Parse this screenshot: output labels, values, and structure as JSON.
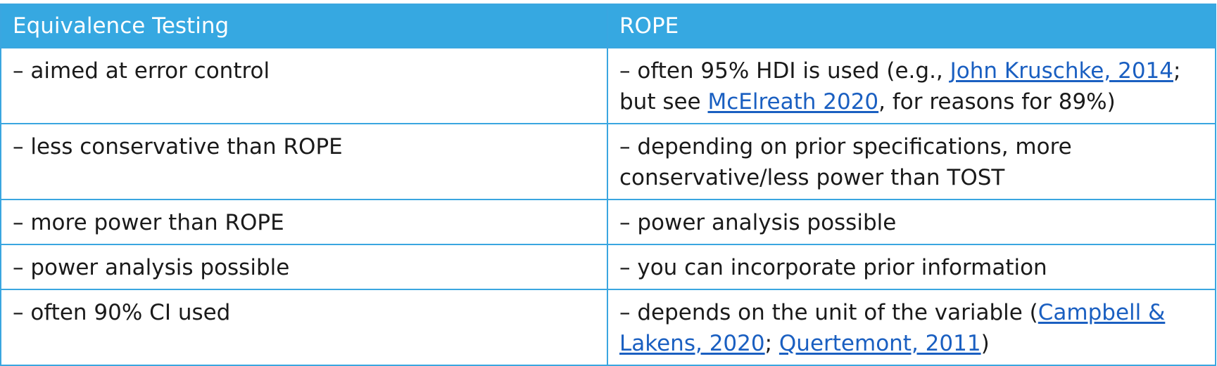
{
  "table": {
    "headers": [
      "Equivalence Testing",
      "ROPE"
    ],
    "rows": [
      {
        "left": "– aimed at error control",
        "right": {
          "t1": "– often 95% HDI is used (e.g., ",
          "link1": "John Kruschke, 2014",
          "t2": "; but see ",
          "link2": "McElreath 2020",
          "t3": ", for reasons for 89%)"
        }
      },
      {
        "left": "– less conservative than ROPE",
        "right": "– depending on prior specifications, more conservative/less power than TOST"
      },
      {
        "left": "– more power than ROPE",
        "right": "– power analysis possible"
      },
      {
        "left": "– power analysis possible",
        "right": "– you can incorporate prior information"
      },
      {
        "left": "– often 90% CI used",
        "right": {
          "t1": "– depends on the unit of the variable (",
          "link1": "Campbell & Lakens, 2020",
          "t2": "; ",
          "link2": "Quertemont, 2011",
          "t3": ")"
        }
      }
    ]
  },
  "colors": {
    "header_bg": "#36a8e1",
    "border": "#3aa6e0",
    "link": "#1a5fc1"
  }
}
